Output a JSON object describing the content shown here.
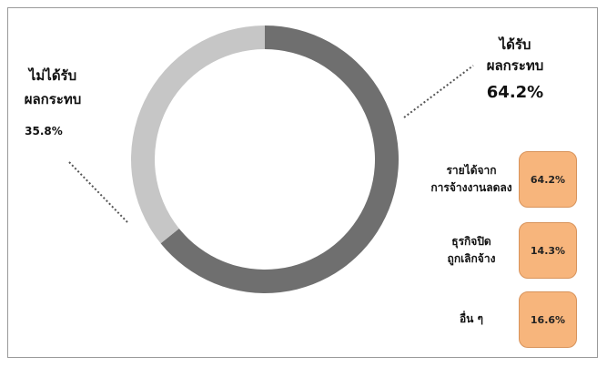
{
  "chart_data": {
    "type": "pie",
    "style": "donut",
    "slices": [
      {
        "label": "ได้รับ\nผลกระทบ",
        "value": 64.2,
        "value_label": "64.2%",
        "color": "#6f6f6f"
      },
      {
        "label": "ไม่ได้รับ\nผลกระทบ",
        "value": 35.8,
        "value_label": "35.8%",
        "color": "#c6c6c6"
      }
    ],
    "breakdown": [
      {
        "label": "รายได้จาก\nการจ้างงานลดลง",
        "value": 64.2,
        "value_label": "64.2%"
      },
      {
        "label": "ธุรกิจปิด\nถูกเลิกจ้าง",
        "value": 14.3,
        "value_label": "14.3%"
      },
      {
        "label": "อื่น ๆ",
        "value": 16.6,
        "value_label": "16.6%"
      }
    ]
  },
  "colors": {
    "affected": "#6f6f6f",
    "not_affected": "#c6c6c6",
    "badge": "#f7b57c",
    "frame": "#9a9a9a"
  }
}
